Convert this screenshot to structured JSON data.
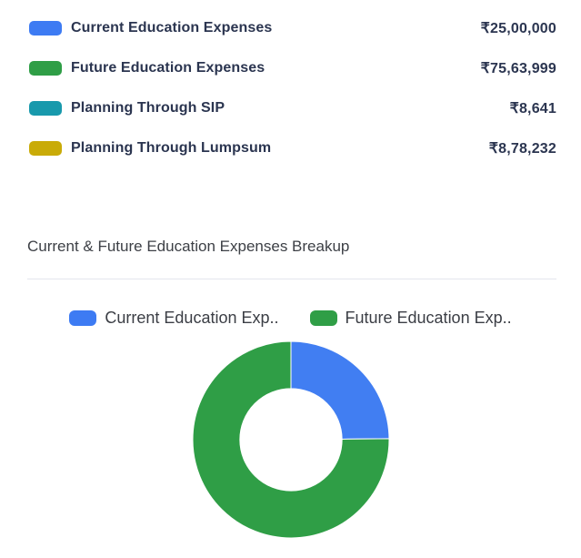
{
  "summary_legend": {
    "items": [
      {
        "label": "Current Education Expenses",
        "value": "₹25,00,000",
        "color": "#3d7bf3"
      },
      {
        "label": "Future Education Expenses",
        "value": "₹75,63,999",
        "color": "#2f9e46"
      },
      {
        "label": "Planning Through SIP",
        "value": "₹8,641",
        "color": "#1899ac"
      },
      {
        "label": "Planning Through Lumpsum",
        "value": "₹8,78,232",
        "color": "#c9ab08"
      }
    ]
  },
  "breakup_section": {
    "title": "Current & Future Education Expenses Breakup"
  },
  "chart_data": {
    "type": "pie",
    "subtype": "donut",
    "title": "Current & Future Education Expenses Breakup",
    "labels": [
      "Current Education Expenses",
      "Future Education Expenses"
    ],
    "values": [
      2500000,
      7563999
    ],
    "value_display": [
      "₹25,00,000",
      "₹75,63,999"
    ],
    "percentages": [
      24.84,
      75.16
    ],
    "colors": [
      "#417ef2",
      "#2f9e46"
    ],
    "start_angle_deg": 0,
    "inner_radius_ratio": 0.52,
    "legend_position": "top",
    "legend": [
      {
        "label": "Current Education Exp..",
        "color": "#3d7bf3"
      },
      {
        "label": "Future Education Exp..",
        "color": "#2f9e46"
      }
    ]
  }
}
